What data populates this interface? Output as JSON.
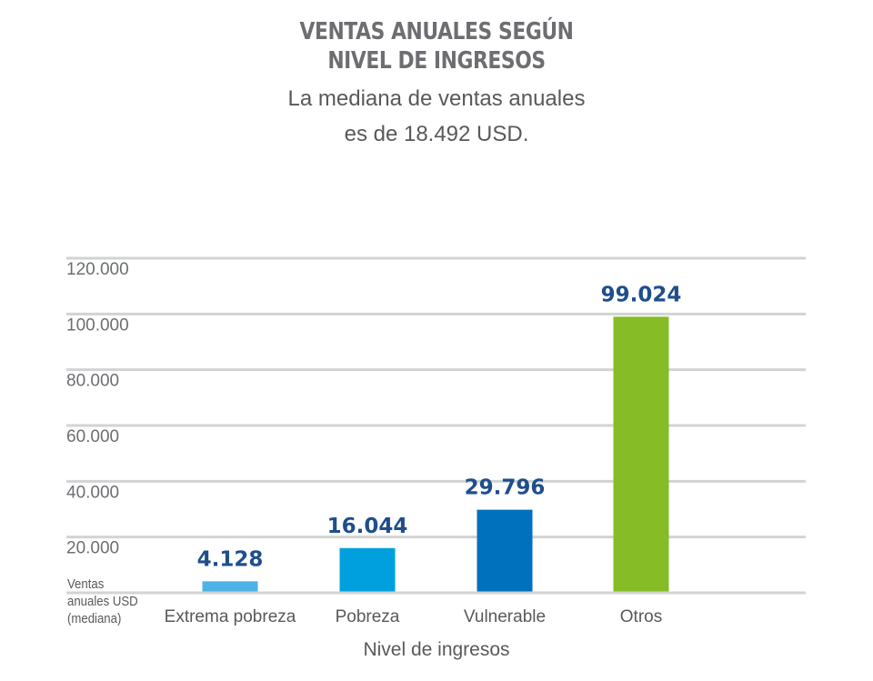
{
  "title_line1": "VENTAS ANUALES SEGÚN",
  "title_line2": "NIVEL DE INGRESOS",
  "subtitle_line1": "La mediana de ventas anuales",
  "subtitle_line2": "es de 18.492 USD.",
  "chart_data": {
    "type": "bar",
    "title": "VENTAS ANUALES SEGÚN NIVEL DE INGRESOS",
    "subtitle": "La mediana de ventas anuales es de 18.492 USD.",
    "categories": [
      "Extrema pobreza",
      "Pobreza",
      "Vulnerable",
      "Otros"
    ],
    "values": [
      4128,
      16044,
      29796,
      99024
    ],
    "value_labels": [
      "4.128",
      "16.044",
      "29.796",
      "99.024"
    ],
    "colors": [
      "#4db3e6",
      "#00a0df",
      "#0071bc",
      "#86bc25"
    ],
    "xlabel": "Nivel de ingresos",
    "ylabel_lines": [
      "Ventas",
      "anuales USD",
      "(mediana)"
    ],
    "ylim": [
      0,
      120000
    ],
    "yticks": [
      20000,
      40000,
      60000,
      80000,
      100000,
      120000
    ],
    "ytick_labels": [
      "20.000",
      "40.000",
      "60.000",
      "80.000",
      "100.000",
      "120.000"
    ],
    "grid": true,
    "gridline_color": "#d1d3d4"
  }
}
